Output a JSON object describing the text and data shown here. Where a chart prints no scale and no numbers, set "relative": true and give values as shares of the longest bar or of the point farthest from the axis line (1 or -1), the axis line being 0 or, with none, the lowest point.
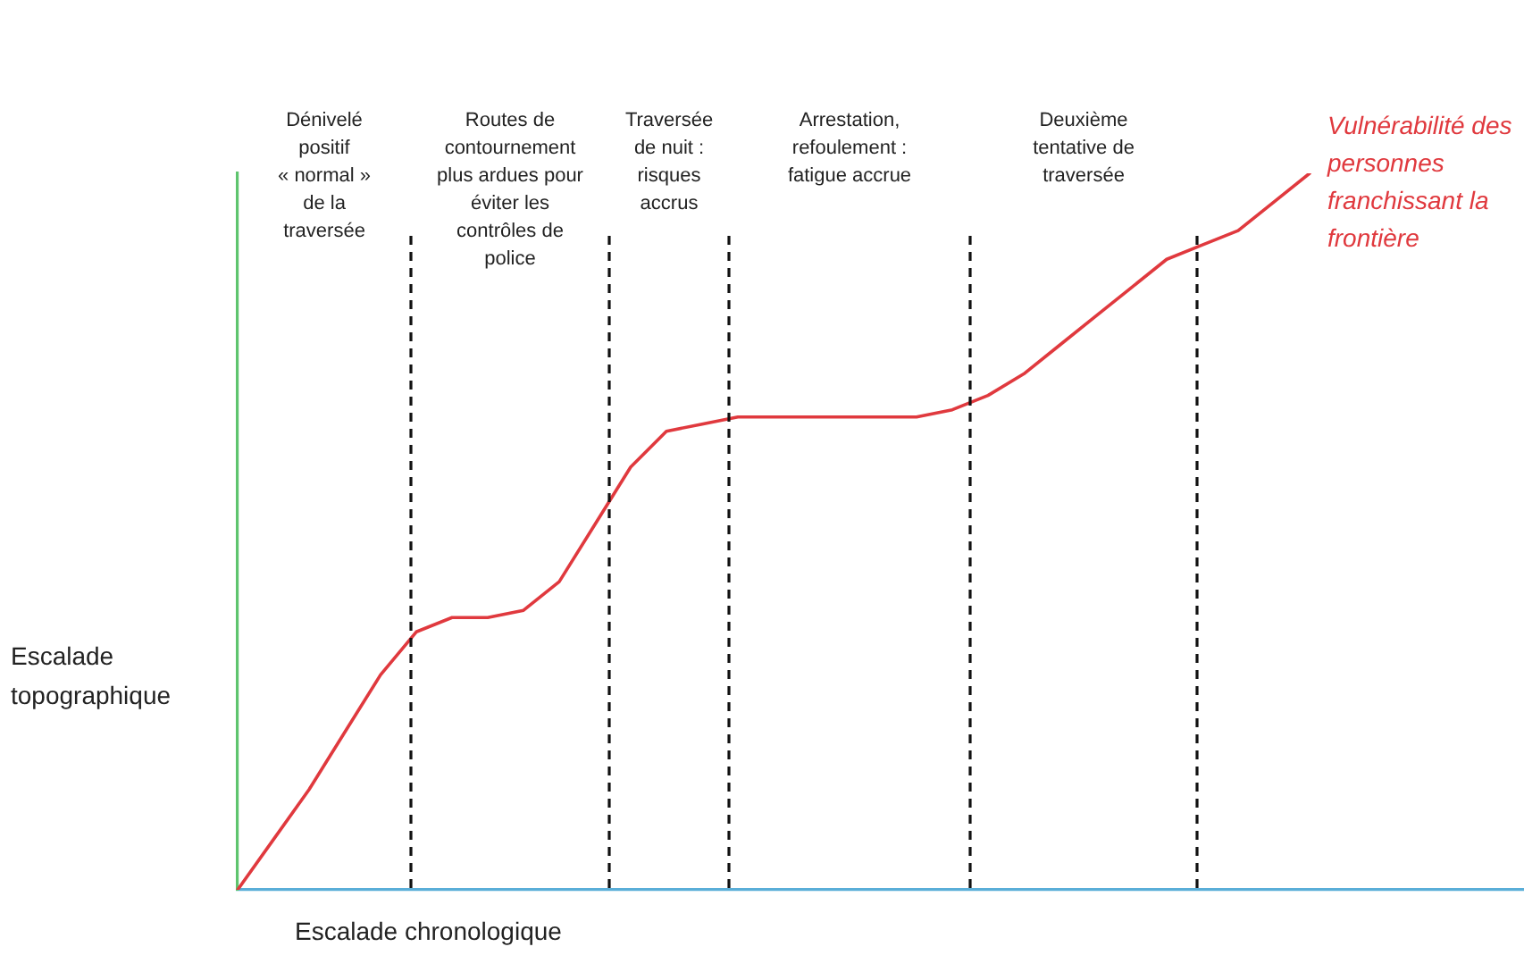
{
  "chart_data": {
    "type": "line",
    "relative": true,
    "xlabel": "Escalade chronologique",
    "ylabel": "Escalade topographique",
    "categories": [
      null,
      null,
      null,
      null,
      null,
      null,
      null,
      null,
      null,
      null,
      null,
      null,
      null,
      null,
      null,
      null,
      null,
      null,
      null,
      null,
      null,
      null,
      null,
      null,
      null,
      null,
      null,
      null,
      null,
      null,
      null,
      null,
      null,
      null,
      null,
      null,
      null
    ],
    "series": [
      {
        "name": "Vulnérabilité des personnes franchissant la frontière",
        "color": "#e0393e",
        "values": [
          0,
          0.07,
          0.14,
          0.22,
          0.3,
          0.36,
          0.38,
          0.38,
          0.39,
          0.43,
          0.51,
          0.59,
          0.64,
          0.65,
          0.66,
          0.66,
          0.66,
          0.66,
          0.66,
          0.66,
          0.67,
          0.69,
          0.72,
          0.76,
          0.8,
          0.84,
          0.88,
          0.9,
          0.92,
          0.96,
          1,
          null,
          null,
          null,
          null,
          null,
          null
        ]
      }
    ],
    "annotations": [
      "Dénivelé\npositif\n« normal »\nde la\ntraversée",
      "Routes de\ncontournement\nplus ardues pour\néviter les\ncontrôles de\npolice",
      "Traversée\nde nuit :\nrisques\naccrus",
      "Arrestation,\nrefoulement :\nfatigue accrue",
      "Deuxième\ntentative de\ntraversée"
    ]
  }
}
